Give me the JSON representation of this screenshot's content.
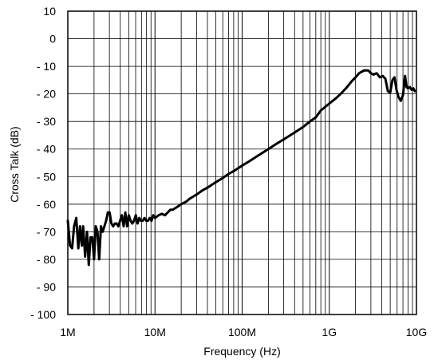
{
  "chart_data": {
    "type": "line",
    "title": "",
    "xlabel": "Frequency (Hz)",
    "ylabel": "Cross Talk (dB)",
    "x_scale": "log",
    "xlim": [
      1000000,
      10000000000
    ],
    "ylim": [
      -100,
      10
    ],
    "grid": true,
    "x_ticks": [
      {
        "value": 1000000,
        "label": "1M"
      },
      {
        "value": 10000000,
        "label": "10M"
      },
      {
        "value": 100000000,
        "label": "100M"
      },
      {
        "value": 1000000000,
        "label": "1G"
      },
      {
        "value": 10000000000,
        "label": "10G"
      }
    ],
    "y_ticks": [
      {
        "value": 10,
        "label": "10"
      },
      {
        "value": 0,
        "label": "0"
      },
      {
        "value": -10,
        "label": "- 10"
      },
      {
        "value": -20,
        "label": "- 20"
      },
      {
        "value": -30,
        "label": "- 30"
      },
      {
        "value": -40,
        "label": "- 40"
      },
      {
        "value": -50,
        "label": "- 50"
      },
      {
        "value": -60,
        "label": "- 60"
      },
      {
        "value": -70,
        "label": "- 70"
      },
      {
        "value": -80,
        "label": "- 80"
      },
      {
        "value": -90,
        "label": "- 90"
      },
      {
        "value": -100,
        "label": "- 100"
      }
    ],
    "series": [
      {
        "color": "#000000",
        "x": [
          1000000,
          1060000,
          1120000,
          1180000,
          1250000,
          1320000,
          1380000,
          1450000,
          1500000,
          1580000,
          1660000,
          1740000,
          1820000,
          1910000,
          2000000,
          2090000,
          2190000,
          2290000,
          2400000,
          2510000,
          2630000,
          2750000,
          2880000,
          3020000,
          3160000,
          3310000,
          3470000,
          3630000,
          3800000,
          3980000,
          4170000,
          4370000,
          4570000,
          4790000,
          5010000,
          5250000,
          5500000,
          5750000,
          6030000,
          6310000,
          6610000,
          6920000,
          7240000,
          7590000,
          7940000,
          8320000,
          8710000,
          9120000,
          9550000,
          10000000,
          11000000,
          12000000,
          13000000,
          14000000,
          15000000,
          16000000,
          18000000,
          20000000,
          23000000,
          25000000,
          30000000,
          35000000,
          40000000,
          50000000,
          60000000,
          70000000,
          80000000,
          100000000,
          120000000,
          150000000,
          200000000,
          250000000,
          300000000,
          400000000,
          500000000,
          600000000,
          700000000,
          800000000,
          1000000000,
          1200000000,
          1400000000,
          1600000000,
          1800000000,
          2000000000,
          2200000000,
          2500000000,
          2800000000,
          3000000000,
          3200000000,
          3500000000,
          3800000000,
          4100000000,
          4400000000,
          4700000000,
          5000000000,
          5300000000,
          5600000000,
          5900000000,
          6200000000,
          6600000000,
          7000000000,
          7400000000,
          7700000000,
          8000000000,
          8400000000,
          8800000000,
          9200000000,
          9600000000
        ],
        "y": [
          -66,
          -75,
          -76,
          -68,
          -65,
          -76,
          -68,
          -75,
          -68,
          -79,
          -70,
          -82,
          -72,
          -72,
          -80,
          -68,
          -70,
          -80,
          -68,
          -70,
          -68,
          -66,
          -63,
          -63,
          -67,
          -68,
          -67,
          -67,
          -68,
          -66,
          -64,
          -68,
          -63,
          -68,
          -64,
          -66,
          -67,
          -66,
          -64,
          -67,
          -65,
          -66,
          -66,
          -65,
          -66,
          -66,
          -65,
          -66,
          -64,
          -65,
          -64,
          -63.5,
          -64,
          -63,
          -62,
          -62,
          -61,
          -60,
          -59,
          -58,
          -56.5,
          -55,
          -54,
          -52,
          -50.5,
          -49,
          -48,
          -46,
          -44.5,
          -42.5,
          -40,
          -38,
          -36.5,
          -34,
          -32,
          -30,
          -28.5,
          -26,
          -23.5,
          -21.5,
          -19.5,
          -17.5,
          -15.5,
          -14,
          -12.5,
          -11.5,
          -11.5,
          -12.5,
          -13,
          -12.5,
          -14,
          -13.5,
          -14.5,
          -19,
          -19.5,
          -15,
          -14,
          -18.5,
          -21,
          -22.5,
          -20.5,
          -13.5,
          -17.5,
          -18,
          -17.5,
          -18.5,
          -18,
          -19
        ]
      }
    ]
  }
}
